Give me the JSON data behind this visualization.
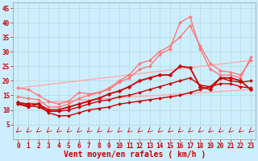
{
  "bg_color": "#cceeff",
  "grid_color": "#aadddd",
  "xlabel": "Vent moyen/en rafales ( km/h )",
  "xlabel_color": "#cc0000",
  "xlabel_fontsize": 7,
  "tick_color": "#cc0000",
  "tick_fontsize": 5.5,
  "xlim": [
    -0.5,
    23.5
  ],
  "ylim": [
    0,
    47
  ],
  "yticks": [
    5,
    10,
    15,
    20,
    25,
    30,
    35,
    40,
    45
  ],
  "xticks": [
    0,
    1,
    2,
    3,
    4,
    5,
    6,
    7,
    8,
    9,
    10,
    11,
    12,
    13,
    14,
    15,
    16,
    17,
    18,
    19,
    20,
    21,
    22,
    23
  ],
  "lines": [
    {
      "x": [
        0,
        23
      ],
      "y": [
        12,
        17
      ],
      "color": "#ffaaaa",
      "lw": 1.0,
      "marker": null,
      "ms": 0,
      "zorder": 2
    },
    {
      "x": [
        0,
        23
      ],
      "y": [
        17.5,
        27
      ],
      "color": "#ffaaaa",
      "lw": 1.0,
      "marker": null,
      "ms": 0,
      "zorder": 2
    },
    {
      "x": [
        0,
        1,
        2,
        3,
        4,
        5,
        6,
        7,
        8,
        9,
        10,
        11,
        12,
        13,
        14,
        15,
        16,
        17,
        18,
        19,
        20,
        21,
        22,
        23
      ],
      "y": [
        12,
        11,
        12,
        9,
        8,
        8,
        9,
        10,
        10.5,
        11,
        12,
        12.5,
        13,
        13.5,
        14,
        14.5,
        15,
        16,
        17,
        18,
        19,
        19,
        18,
        17.5
      ],
      "color": "#cc0000",
      "lw": 1.0,
      "marker": "D",
      "ms": 2.0,
      "zorder": 5
    },
    {
      "x": [
        0,
        1,
        2,
        3,
        4,
        5,
        6,
        7,
        8,
        9,
        10,
        11,
        12,
        13,
        14,
        15,
        16,
        17,
        18,
        19,
        20,
        21,
        22,
        23
      ],
      "y": [
        12,
        11.5,
        11,
        9.5,
        9.5,
        10,
        11,
        12,
        13,
        13.5,
        14.5,
        15,
        16,
        17,
        18,
        19,
        20,
        21,
        18.5,
        18,
        21,
        20,
        19.5,
        20
      ],
      "color": "#cc0000",
      "lw": 1.0,
      "marker": "D",
      "ms": 2.0,
      "zorder": 5
    },
    {
      "x": [
        0,
        1,
        2,
        3,
        4,
        5,
        6,
        7,
        8,
        9,
        10,
        11,
        12,
        13,
        14,
        15,
        16,
        17,
        18,
        19,
        20,
        21,
        22,
        23
      ],
      "y": [
        12.5,
        12,
        12,
        10,
        10,
        11,
        12,
        13,
        14,
        15.5,
        16.5,
        18,
        20,
        21,
        22,
        22,
        25,
        24.5,
        18,
        17,
        21,
        21,
        20,
        17
      ],
      "color": "#cc0000",
      "lw": 1.3,
      "marker": "D",
      "ms": 2.5,
      "zorder": 6
    },
    {
      "x": [
        0,
        1,
        2,
        3,
        4,
        5,
        6,
        7,
        8,
        9,
        10,
        11,
        12,
        13,
        14,
        15,
        16,
        17,
        18,
        19,
        20,
        21,
        22,
        23
      ],
      "y": [
        17.5,
        17,
        15,
        13,
        12,
        13,
        16,
        15.5,
        16,
        17,
        19.5,
        21,
        24,
        25,
        29,
        31,
        40,
        42,
        31,
        24,
        22,
        22,
        21,
        28
      ],
      "color": "#ff7777",
      "lw": 1.0,
      "marker": "D",
      "ms": 2.0,
      "zorder": 4
    },
    {
      "x": [
        0,
        1,
        2,
        3,
        4,
        5,
        6,
        7,
        8,
        9,
        10,
        11,
        12,
        13,
        14,
        15,
        16,
        17,
        18,
        19,
        20,
        21,
        22,
        23
      ],
      "y": [
        14.5,
        14,
        13.5,
        11,
        11,
        12,
        14,
        15,
        16,
        17.5,
        20,
        22,
        26,
        27,
        30,
        32,
        35,
        39,
        32,
        26,
        23.5,
        23,
        22,
        27
      ],
      "color": "#ff7777",
      "lw": 1.0,
      "marker": "D",
      "ms": 2.0,
      "zorder": 4
    }
  ],
  "arrows": {
    "y_data": 2.8,
    "color": "#cc0000",
    "lw": 0.5
  }
}
